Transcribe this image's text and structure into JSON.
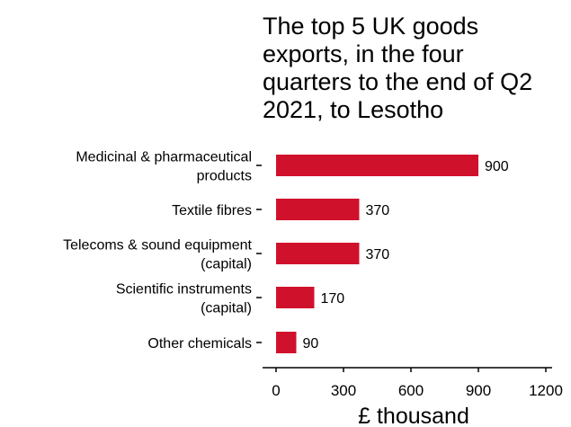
{
  "chart_data": {
    "type": "bar",
    "orientation": "horizontal",
    "title_lines": [
      "The top 5 UK goods",
      "exports, in the four",
      "quarters to the end of Q2",
      "2021, to Lesotho"
    ],
    "categories": [
      [
        "Medicinal & pharmaceutical",
        "products"
      ],
      [
        "Textile fibres"
      ],
      [
        "Telecoms & sound equipment",
        "(capital)"
      ],
      [
        "Scientific instruments",
        "(capital)"
      ],
      [
        "Other chemicals"
      ]
    ],
    "values": [
      900,
      370,
      370,
      170,
      90
    ],
    "value_labels": [
      "900",
      "370",
      "370",
      "170",
      "90"
    ],
    "xlabel": "£ thousand",
    "ylabel": "",
    "xlim": [
      0,
      1200
    ],
    "xticks": [
      0,
      300,
      600,
      900,
      1200
    ],
    "xtick_labels": [
      "0",
      "300",
      "600",
      "900",
      "1200"
    ],
    "grid": false,
    "legend": "none",
    "bar_color": "#d0112b"
  }
}
